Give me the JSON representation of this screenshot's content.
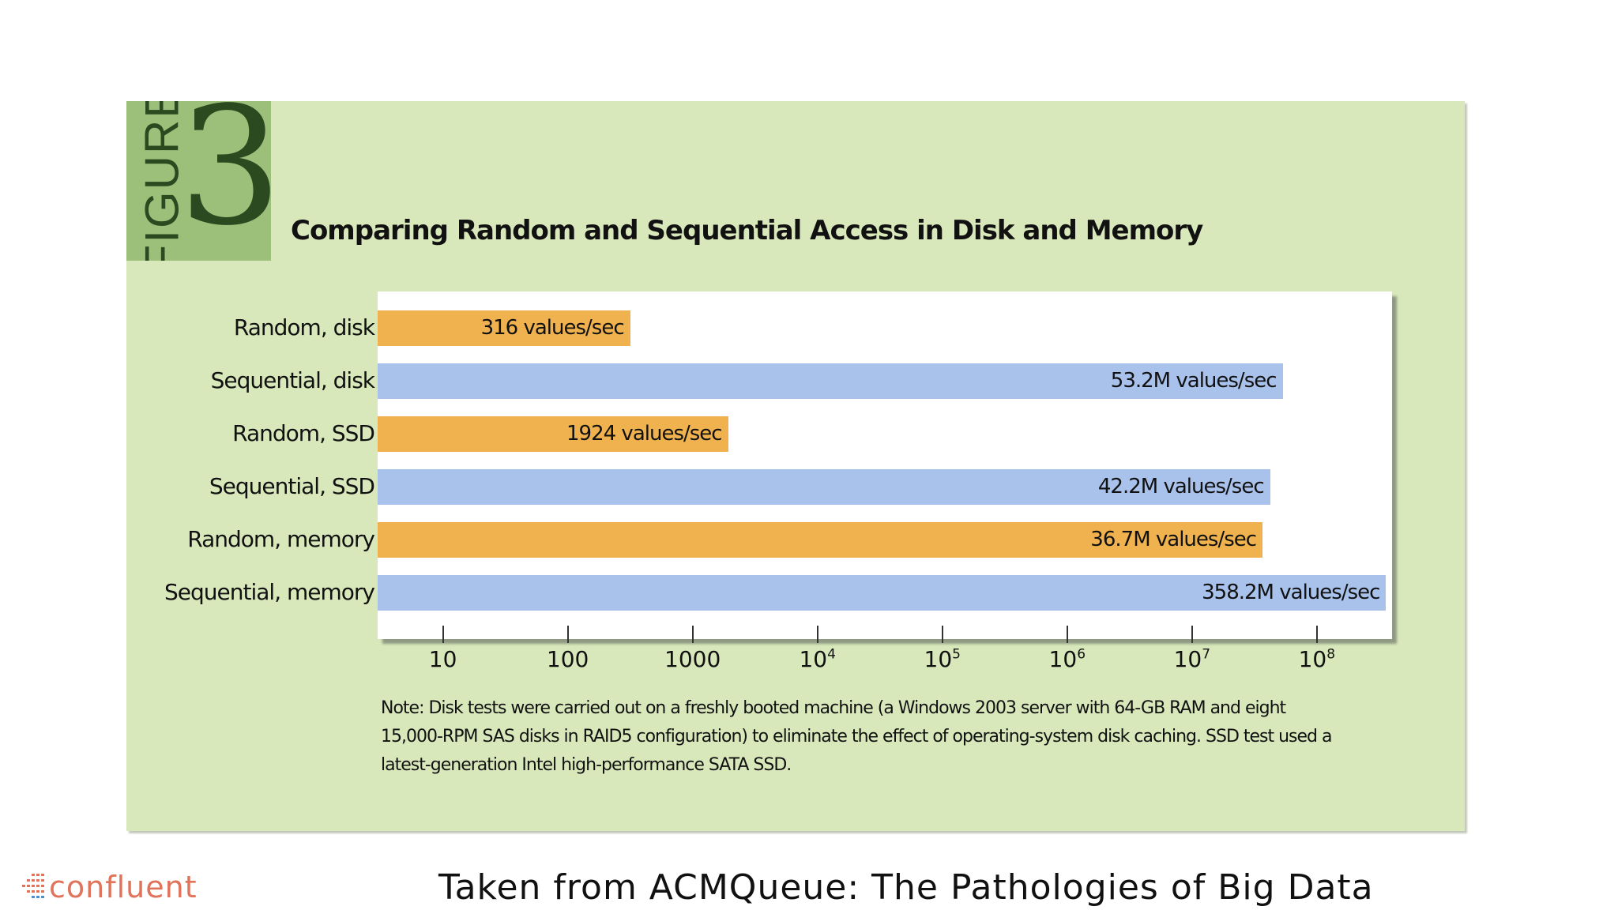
{
  "figure": {
    "word": "FIGURE",
    "number": "3"
  },
  "chart_data": {
    "type": "bar",
    "orientation": "horizontal",
    "title": "Comparing Random and Sequential Access in Disk and Memory",
    "x_scale": "log",
    "xlim": [
      3,
      400000000
    ],
    "xlabel": "",
    "ylabel": "",
    "ticks": [
      {
        "value": 10,
        "base": "10",
        "exp": ""
      },
      {
        "value": 100,
        "base": "100",
        "exp": ""
      },
      {
        "value": 1000,
        "base": "1000",
        "exp": ""
      },
      {
        "value": 10000,
        "base": "10",
        "exp": "4"
      },
      {
        "value": 100000,
        "base": "10",
        "exp": "5"
      },
      {
        "value": 1000000,
        "base": "10",
        "exp": "6"
      },
      {
        "value": 10000000,
        "base": "10",
        "exp": "7"
      },
      {
        "value": 100000000,
        "base": "10",
        "exp": "8"
      }
    ],
    "categories": [
      "Random, disk",
      "Sequential, disk",
      "Random, SSD",
      "Sequential, SSD",
      "Random, memory",
      "Sequential, memory"
    ],
    "values": [
      316,
      53200000,
      1924,
      42200000,
      36700000,
      358200000
    ],
    "data_labels": [
      "316 values/sec",
      "53.2M values/sec",
      "1924 values/sec",
      "42.2M values/sec",
      "36.7M values/sec",
      "358.2M values/sec"
    ],
    "bar_colors": [
      "#f0b24e",
      "#a9c2ec",
      "#f0b24e",
      "#a9c2ec",
      "#f0b24e",
      "#a9c2ec"
    ],
    "grid": false,
    "legend": "none"
  },
  "note": "Note: Disk tests were carried out on a freshly booted machine (a Windows 2003 server with 64-GB RAM and eight 15,000-RPM SAS disks in RAID5 configuration) to eliminate the effect of operating-system disk caching. SSD test used a latest-generation Intel high-performance SATA SSD.",
  "colors": {
    "panel": "#d8e8bb",
    "badge": "#9cc07a",
    "random": "#f0b24e",
    "sequential": "#a9c2ec",
    "brand": "#e0735a"
  },
  "logo": {
    "text": "confluent"
  },
  "caption": "Taken from ACMQueue: The Pathologies of Big Data"
}
